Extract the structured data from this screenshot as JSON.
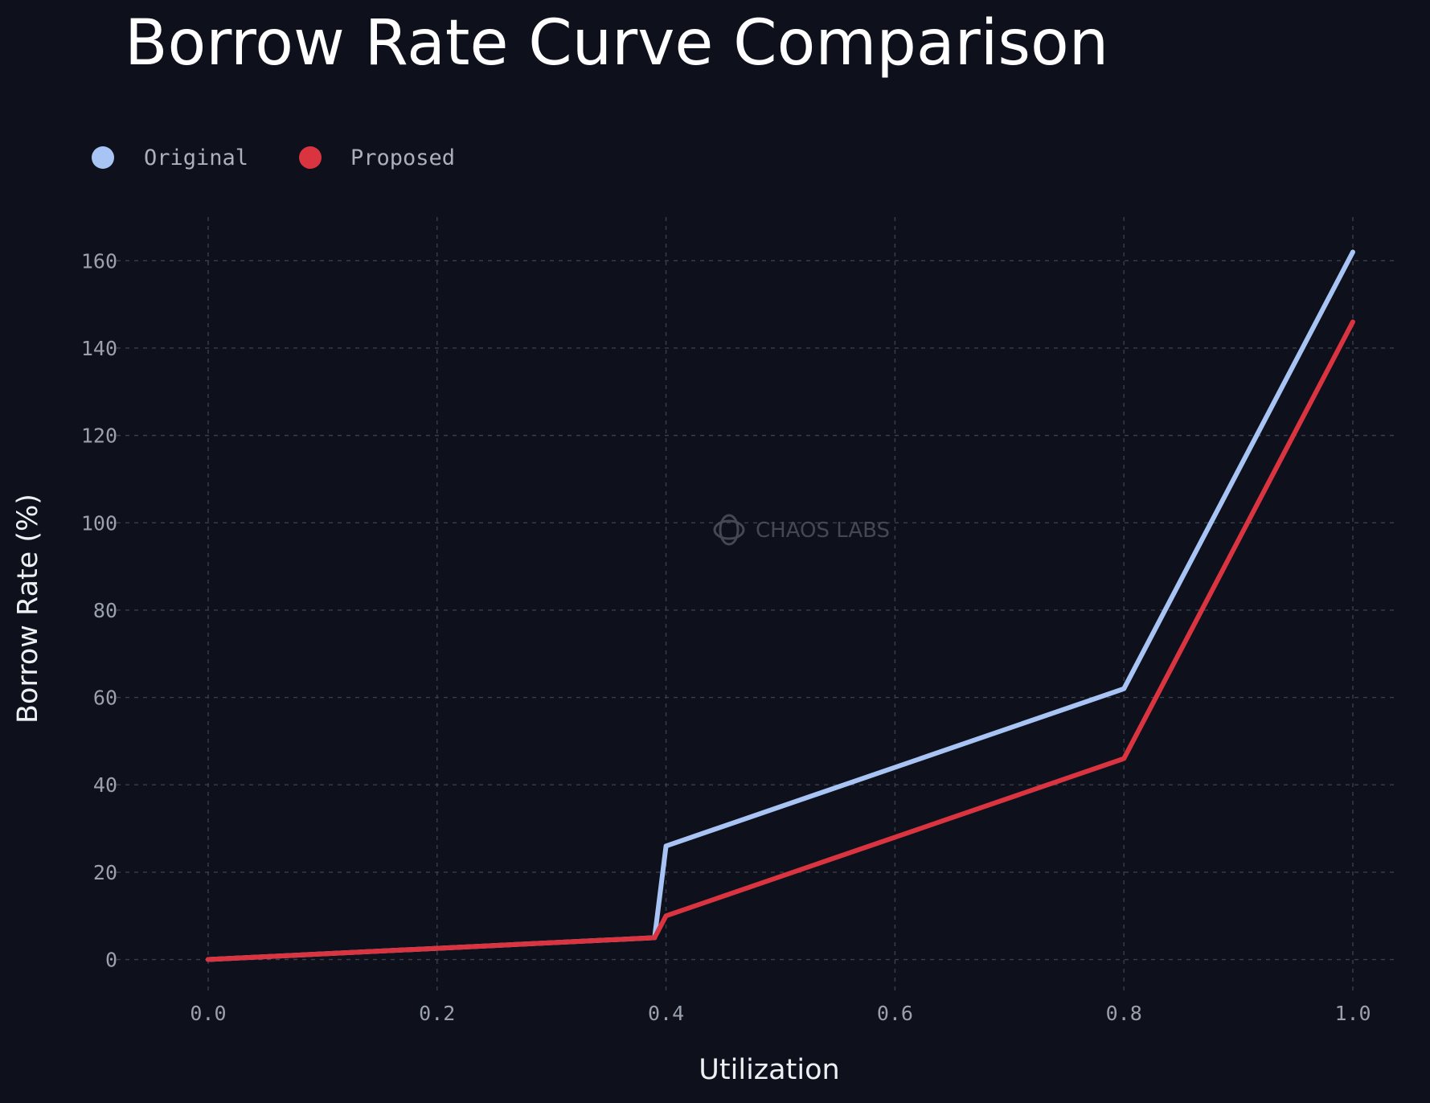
{
  "chart_data": {
    "type": "line",
    "title": "Borrow Rate Curve Comparison",
    "xlabel": "Utilization",
    "ylabel": "Borrow Rate (%)",
    "xlim": [
      -0.08,
      1.04
    ],
    "ylim": [
      -8,
      170
    ],
    "xticks": [
      0.0,
      0.2,
      0.4,
      0.6,
      0.8,
      1.0
    ],
    "xtick_labels": [
      "0.0",
      "0.2",
      "0.4",
      "0.6",
      "0.8",
      "1.0"
    ],
    "yticks": [
      0,
      20,
      40,
      60,
      80,
      100,
      120,
      140,
      160
    ],
    "ytick_labels": [
      "0",
      "20",
      "40",
      "60",
      "80",
      "100",
      "120",
      "140",
      "160"
    ],
    "grid": true,
    "legend_position": "top-left",
    "watermark": "CHAOS LABS",
    "series": [
      {
        "name": "Original",
        "color": "#a8c4f5",
        "x": [
          0.0,
          0.39,
          0.4,
          0.8,
          1.0
        ],
        "y": [
          0,
          5,
          26,
          62,
          162
        ]
      },
      {
        "name": "Proposed",
        "color": "#d9343f",
        "x": [
          0.0,
          0.39,
          0.4,
          0.8,
          1.0
        ],
        "y": [
          0,
          5,
          10,
          46,
          146
        ]
      }
    ]
  }
}
